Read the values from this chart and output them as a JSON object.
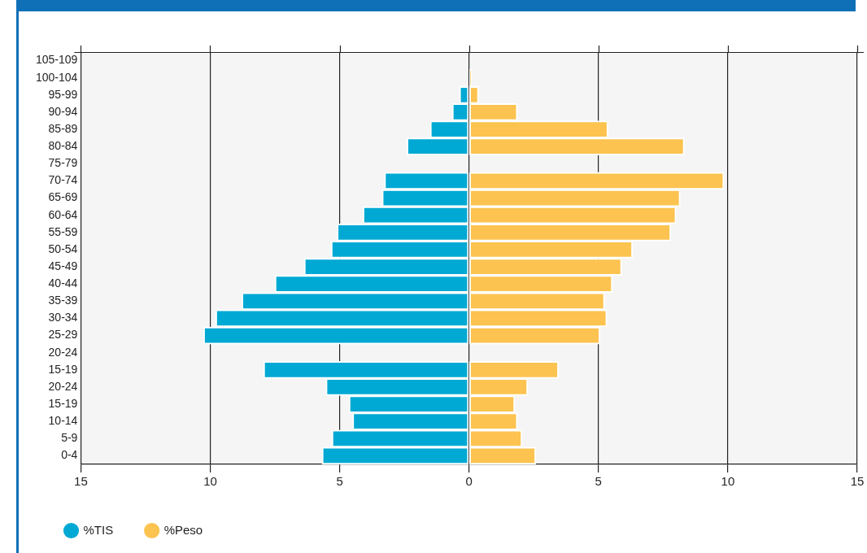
{
  "chart_data": {
    "type": "bar",
    "orientation": "horizontal",
    "stacked": true,
    "categories": [
      "105-109",
      "100-104",
      "95-99",
      "90-94",
      "85-89",
      "80-84",
      "75-79",
      "70-74",
      "65-69",
      "60-64",
      "55-59",
      "50-54",
      "45-49",
      "40-44",
      "35-39",
      "30-34",
      "25-29",
      "20-24",
      "15-19",
      "20-24",
      "15-19",
      "10-14",
      "5-9",
      "0-4"
    ],
    "series": [
      {
        "name": "%TIS",
        "color": "#00a9d4",
        "values": [
          0,
          0,
          -0.37,
          -0.65,
          -1.5,
          -2.4,
          null,
          -3.27,
          -3.36,
          -4.1,
          -5.1,
          -5.33,
          -6.37,
          -7.5,
          -8.78,
          -9.79,
          -10.26,
          null,
          -7.94,
          -5.53,
          -4.64,
          -4.5,
          -5.3,
          -5.68
        ]
      },
      {
        "name": "%Peso",
        "color": "#fcc350",
        "values": [
          0,
          0.1,
          0.37,
          1.87,
          5.37,
          8.32,
          null,
          9.85,
          8.16,
          8.0,
          7.8,
          6.32,
          5.9,
          5.54,
          5.24,
          5.33,
          5.06,
          null,
          3.46,
          2.27,
          1.77,
          1.87,
          2.05,
          2.58
        ]
      }
    ],
    "xlim": [
      -15,
      15
    ],
    "xticks": [
      {
        "value": -15,
        "label": "15"
      },
      {
        "value": -10,
        "label": "10"
      },
      {
        "value": -5,
        "label": "5"
      },
      0,
      5,
      10,
      15
    ],
    "grid": "x",
    "legend": "bottom left"
  }
}
